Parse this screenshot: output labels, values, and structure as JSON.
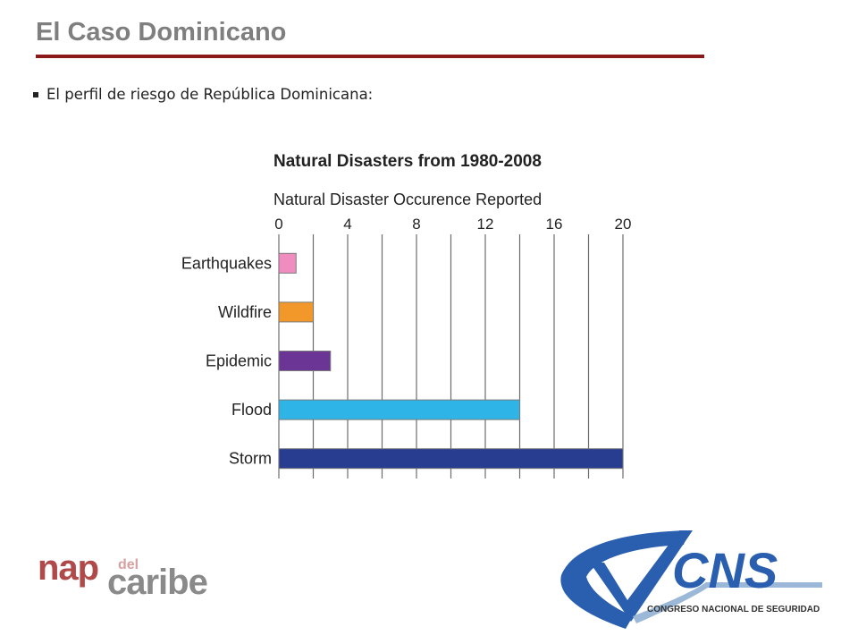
{
  "slide": {
    "title": "El Caso Dominicano",
    "bullet": "El perfil de riesgo de República Dominicana:"
  },
  "colors": {
    "title_text": "#7f7f7f",
    "title_rule": "#8b1a1a",
    "grid": "#6d6d6d",
    "bar_outline": "#7a7a7a"
  },
  "chart_data": {
    "type": "bar",
    "orientation": "horizontal",
    "title": "Natural Disasters from 1980-2008",
    "xlabel": "Natural Disaster Occurence Reported",
    "ylabel": "",
    "xlim": [
      0,
      20
    ],
    "xticks": [
      0,
      4,
      8,
      12,
      16,
      20
    ],
    "grid_step": 2,
    "grid": true,
    "x_axis_position": "top",
    "categories": [
      "Earthquakes",
      "Wildfire",
      "Epidemic",
      "Flood",
      "Storm"
    ],
    "values": [
      1,
      2,
      3,
      14,
      20
    ],
    "bar_colors": [
      "#f08cc0",
      "#f2982a",
      "#6a3595",
      "#2eb4e6",
      "#283d8f"
    ]
  },
  "logos": {
    "nap": {
      "nap": "nap",
      "del": "del",
      "caribe": "caribe"
    },
    "cns": {
      "letters": "CNS",
      "tagline": "CONGRESO NACIONAL DE SEGURIDAD"
    }
  }
}
